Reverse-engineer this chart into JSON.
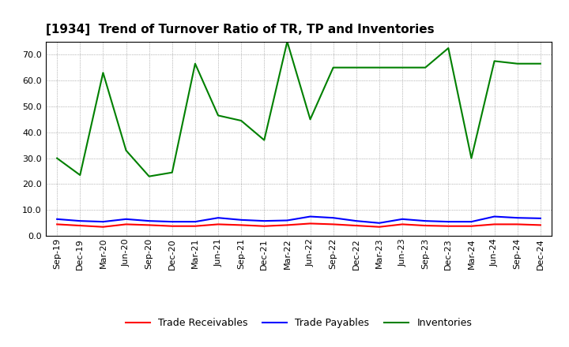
{
  "title": "[1934]  Trend of Turnover Ratio of TR, TP and Inventories",
  "labels": [
    "Sep-19",
    "Dec-19",
    "Mar-20",
    "Jun-20",
    "Sep-20",
    "Dec-20",
    "Mar-21",
    "Jun-21",
    "Sep-21",
    "Dec-21",
    "Mar-22",
    "Jun-22",
    "Sep-22",
    "Dec-22",
    "Mar-23",
    "Jun-23",
    "Sep-23",
    "Dec-23",
    "Mar-24",
    "Jun-24",
    "Sep-24",
    "Dec-24"
  ],
  "trade_receivables": [
    4.5,
    4.0,
    3.5,
    4.5,
    4.2,
    3.8,
    3.8,
    4.5,
    4.2,
    3.8,
    4.2,
    4.8,
    4.5,
    4.0,
    3.5,
    4.5,
    4.0,
    3.8,
    3.8,
    4.5,
    4.5,
    4.2
  ],
  "trade_payables": [
    6.5,
    5.8,
    5.5,
    6.5,
    5.8,
    5.5,
    5.5,
    7.0,
    6.2,
    5.8,
    6.0,
    7.5,
    7.0,
    5.8,
    5.0,
    6.5,
    5.8,
    5.5,
    5.5,
    7.5,
    7.0,
    6.8
  ],
  "inventories": [
    30.0,
    23.5,
    63.0,
    33.0,
    23.0,
    24.5,
    66.5,
    46.5,
    44.5,
    37.0,
    75.0,
    45.0,
    65.0,
    65.0,
    65.0,
    65.0,
    65.0,
    72.5,
    30.0,
    67.5,
    66.5,
    66.5
  ],
  "ylim": [
    0,
    75
  ],
  "yticks": [
    0.0,
    10.0,
    20.0,
    30.0,
    40.0,
    50.0,
    60.0,
    70.0
  ],
  "color_tr": "#FF0000",
  "color_tp": "#0000FF",
  "color_inv": "#008000",
  "legend_tr": "Trade Receivables",
  "legend_tp": "Trade Payables",
  "legend_inv": "Inventories",
  "bg_color": "#FFFFFF",
  "grid_color": "#808080",
  "title_fontsize": 11,
  "tick_fontsize": 8,
  "legend_fontsize": 9
}
